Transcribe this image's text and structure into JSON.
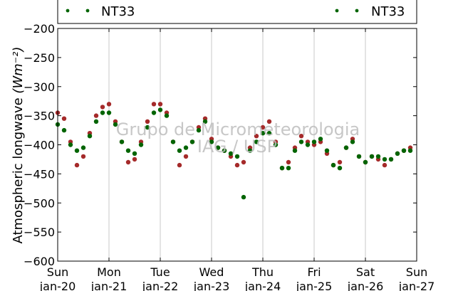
{
  "chart_data": {
    "type": "scatter",
    "title": "",
    "ylabel": "Atmospheric longwave",
    "ylabel_unit": "(Wm⁻²)",
    "ylim": [
      -600,
      -200
    ],
    "yticks": [
      "−200",
      "−250",
      "−300",
      "−350",
      "−400",
      "−450",
      "−500",
      "−550",
      "−600"
    ],
    "ytick_values": [
      -200,
      -250,
      -300,
      -350,
      -400,
      -450,
      -500,
      -550,
      -600
    ],
    "xlim": [
      "2014-01-20",
      "2014-01-27"
    ],
    "xticks": [
      {
        "day": "Sun",
        "date": "jan-20"
      },
      {
        "day": "Mon",
        "date": "jan-21"
      },
      {
        "day": "Tue",
        "date": "jan-22"
      },
      {
        "day": "Wed",
        "date": "jan-23"
      },
      {
        "day": "Thu",
        "date": "jan-24"
      },
      {
        "day": "Fri",
        "date": "jan-25"
      },
      {
        "day": "Sat",
        "date": "jan-26"
      },
      {
        "day": "Sun",
        "date": "jan-27"
      }
    ],
    "grid": "vertical",
    "legend": [
      {
        "label": "NT33",
        "placement": "top-left",
        "color": "#006400"
      },
      {
        "label": "NT33",
        "placement": "top-right",
        "color": "#006400"
      }
    ],
    "annotations": [
      "Grupo de Micrometeorologia",
      "IAG / USP"
    ],
    "series": [
      {
        "color": "#a52a2a",
        "x": [
          "01-20 00:00",
          "01-20 03:00",
          "01-20 06:00",
          "01-20 09:00",
          "01-20 12:00",
          "01-20 15:00",
          "01-20 18:00",
          "01-20 21:00",
          "01-21 00:00",
          "01-21 03:00",
          "01-21 06:00",
          "01-21 09:00",
          "01-21 12:00",
          "01-21 15:00",
          "01-21 18:00",
          "01-21 21:00",
          "01-22 00:00",
          "01-22 03:00",
          "01-22 06:00",
          "01-22 09:00",
          "01-22 12:00",
          "01-22 15:00",
          "01-22 18:00",
          "01-22 21:00",
          "01-23 00:00",
          "01-23 03:00",
          "01-23 06:00",
          "01-23 09:00",
          "01-23 12:00",
          "01-23 15:00",
          "01-23 18:00",
          "01-23 21:00",
          "01-24 00:00",
          "01-24 03:00",
          "01-24 06:00",
          "01-24 09:00",
          "01-24 12:00",
          "01-24 15:00",
          "01-24 18:00",
          "01-24 21:00",
          "01-25 00:00",
          "01-25 03:00",
          "01-25 06:00",
          "01-25 09:00",
          "01-25 12:00",
          "01-25 15:00",
          "01-25 18:00",
          "01-25 21:00",
          "01-26 00:00",
          "01-26 03:00",
          "01-26 06:00",
          "01-26 09:00",
          "01-26 12:00",
          "01-26 15:00",
          "01-26 18:00",
          "01-26 21:00"
        ],
        "y": [
          -345,
          -355,
          -395,
          -435,
          -420,
          -380,
          -350,
          -335,
          -330,
          -360,
          -395,
          -430,
          -425,
          -395,
          -360,
          -330,
          -330,
          -345,
          -395,
          -435,
          -420,
          -395,
          -370,
          -355,
          -390,
          -405,
          -410,
          -420,
          -435,
          -430,
          -405,
          -385,
          -370,
          -360,
          -395,
          -440,
          -430,
          -405,
          -385,
          -395,
          -400,
          -395,
          -415,
          -435,
          -430,
          -405,
          -390,
          -420,
          -430,
          -420,
          -425,
          -435,
          -425,
          -415,
          -410,
          -405
        ]
      },
      {
        "color": "#006400",
        "x": [
          "01-20 00:00",
          "01-20 03:00",
          "01-20 06:00",
          "01-20 09:00",
          "01-20 12:00",
          "01-20 15:00",
          "01-20 18:00",
          "01-20 21:00",
          "01-21 00:00",
          "01-21 03:00",
          "01-21 06:00",
          "01-21 09:00",
          "01-21 12:00",
          "01-21 15:00",
          "01-21 18:00",
          "01-21 21:00",
          "01-22 00:00",
          "01-22 03:00",
          "01-22 06:00",
          "01-22 09:00",
          "01-22 12:00",
          "01-22 15:00",
          "01-22 18:00",
          "01-22 21:00",
          "01-23 00:00",
          "01-23 03:00",
          "01-23 06:00",
          "01-23 09:00",
          "01-23 12:00",
          "01-23 15:00",
          "01-23 18:00",
          "01-23 21:00",
          "01-24 00:00",
          "01-24 03:00",
          "01-24 06:00",
          "01-24 09:00",
          "01-24 12:00",
          "01-24 15:00",
          "01-24 18:00",
          "01-24 21:00",
          "01-25 00:00",
          "01-25 03:00",
          "01-25 06:00",
          "01-25 09:00",
          "01-25 12:00",
          "01-25 15:00",
          "01-25 18:00",
          "01-25 21:00",
          "01-26 00:00",
          "01-26 03:00",
          "01-26 06:00",
          "01-26 09:00",
          "01-26 12:00",
          "01-26 15:00",
          "01-26 18:00",
          "01-26 21:00"
        ],
        "y": [
          -365,
          -375,
          -400,
          -410,
          -405,
          -385,
          -360,
          -345,
          -345,
          -365,
          -395,
          -410,
          -415,
          -400,
          -370,
          -345,
          -340,
          -350,
          -395,
          -410,
          -405,
          -395,
          -375,
          -360,
          -395,
          -405,
          -410,
          -415,
          -420,
          -490,
          -410,
          -395,
          -380,
          -380,
          -400,
          -440,
          -440,
          -410,
          -395,
          -400,
          -395,
          -390,
          -410,
          -435,
          -440,
          -405,
          -395,
          -420,
          -430,
          -420,
          -420,
          -425,
          -425,
          -415,
          -410,
          -410
        ]
      }
    ]
  }
}
